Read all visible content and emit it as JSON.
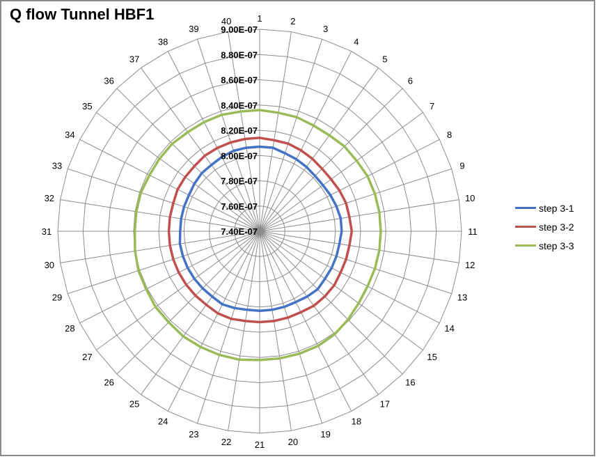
{
  "chart_data": {
    "type": "radar",
    "title": "Q flow Tunnel HBF1",
    "categories": [
      "1",
      "2",
      "3",
      "4",
      "5",
      "6",
      "7",
      "8",
      "9",
      "10",
      "11",
      "12",
      "13",
      "14",
      "15",
      "16",
      "17",
      "18",
      "19",
      "20",
      "21",
      "22",
      "23",
      "24",
      "25",
      "26",
      "27",
      "28",
      "29",
      "30",
      "31",
      "32",
      "33",
      "34",
      "35",
      "36",
      "37",
      "38",
      "39",
      "40"
    ],
    "radial_ticks": [
      "7.40E-07",
      "7.60E-07",
      "7.80E-07",
      "8.00E-07",
      "8.20E-07",
      "8.40E-07",
      "8.60E-07",
      "8.80E-07",
      "9.00E-07"
    ],
    "rlim": [
      7.4e-07,
      9e-07
    ],
    "rlim_ring_count": 8,
    "legend_position": "right",
    "grid": true,
    "series": [
      {
        "name": "step 3-1",
        "color": "#4472c4",
        "values": [
          8.07e-07,
          8.07e-07,
          8.05e-07,
          8.04e-07,
          8.03e-07,
          8.02e-07,
          8.02e-07,
          8.03e-07,
          8.04e-07,
          8.05e-07,
          8.05e-07,
          8.04e-07,
          8.04e-07,
          8.04e-07,
          8.04e-07,
          8.05e-07,
          8.04e-07,
          8.03e-07,
          8.03e-07,
          8.03e-07,
          8.03e-07,
          8.03e-07,
          8.04e-07,
          8.05e-07,
          8.04e-07,
          8.04e-07,
          8.04e-07,
          8.04e-07,
          8.04e-07,
          8.04e-07,
          8.03e-07,
          8.03e-07,
          8.03e-07,
          8.03e-07,
          8.04e-07,
          8.05e-07,
          8.05e-07,
          8.06e-07,
          8.07e-07,
          8.07e-07
        ]
      },
      {
        "name": "step 3-2",
        "color": "#c0504d",
        "values": [
          8.14e-07,
          8.13e-07,
          8.13e-07,
          8.12e-07,
          8.11e-07,
          8.1e-07,
          8.1e-07,
          8.11e-07,
          8.12e-07,
          8.12e-07,
          8.13e-07,
          8.12e-07,
          8.12e-07,
          8.12e-07,
          8.13e-07,
          8.13e-07,
          8.13e-07,
          8.12e-07,
          8.12e-07,
          8.12e-07,
          8.12e-07,
          8.12e-07,
          8.13e-07,
          8.13e-07,
          8.12e-07,
          8.12e-07,
          8.12e-07,
          8.12e-07,
          8.12e-07,
          8.12e-07,
          8.12e-07,
          8.12e-07,
          8.12e-07,
          8.13e-07,
          8.13e-07,
          8.13e-07,
          8.14e-07,
          8.14e-07,
          8.14e-07,
          8.14e-07
        ]
      },
      {
        "name": "step 3-3",
        "color": "#9bbb59",
        "values": [
          8.36e-07,
          8.35e-07,
          8.35e-07,
          8.34e-07,
          8.34e-07,
          8.35e-07,
          8.35e-07,
          8.36e-07,
          8.36e-07,
          8.36e-07,
          8.36e-07,
          8.36e-07,
          8.36e-07,
          8.36e-07,
          8.37e-07,
          8.39e-07,
          8.41e-07,
          8.42e-07,
          8.42e-07,
          8.42e-07,
          8.42e-07,
          8.43e-07,
          8.43e-07,
          8.43e-07,
          8.43e-07,
          8.42e-07,
          8.42e-07,
          8.41e-07,
          8.41e-07,
          8.4e-07,
          8.39e-07,
          8.39e-07,
          8.39e-07,
          8.38e-07,
          8.38e-07,
          8.38e-07,
          8.37e-07,
          8.37e-07,
          8.37e-07,
          8.36e-07
        ]
      }
    ]
  }
}
